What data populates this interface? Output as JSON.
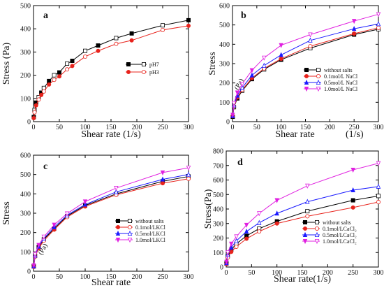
{
  "chart_data": [
    {
      "panel": "a",
      "type": "line",
      "xlabel": "Shear rate (1/s)",
      "ylabel": "Stress (Pa)",
      "xlim": [
        0,
        300
      ],
      "ylim": [
        0,
        500
      ],
      "xticks": [
        0,
        50,
        100,
        150,
        200,
        250,
        300
      ],
      "yticks": [
        0,
        100,
        200,
        300,
        400,
        500
      ],
      "legend_position": "right",
      "series": [
        {
          "name": "pH7",
          "color": "#000000",
          "marker": "square",
          "values": [
            [
              0.5,
              20
            ],
            [
              2,
              50
            ],
            [
              5,
              82
            ],
            [
              10,
              105
            ],
            [
              15,
              125
            ],
            [
              20,
              145
            ],
            [
              30,
              175
            ],
            [
              40,
              200
            ],
            [
              50,
              212
            ],
            [
              65,
              250
            ],
            [
              75,
              262
            ],
            [
              100,
              305
            ],
            [
              125,
              328
            ],
            [
              160,
              360
            ],
            [
              190,
              380
            ],
            [
              250,
              415
            ],
            [
              300,
              437
            ]
          ]
        },
        {
          "name": "pH3",
          "color": "#e8231c",
          "marker": "circle",
          "values": [
            [
              0.5,
              15
            ],
            [
              2,
              40
            ],
            [
              5,
              70
            ],
            [
              10,
              95
            ],
            [
              15,
              115
            ],
            [
              20,
              130
            ],
            [
              30,
              160
            ],
            [
              40,
              180
            ],
            [
              50,
              195
            ],
            [
              65,
              225
            ],
            [
              75,
              240
            ],
            [
              100,
              280
            ],
            [
              125,
              305
            ],
            [
              160,
              335
            ],
            [
              190,
              350
            ],
            [
              250,
              395
            ],
            [
              300,
              413
            ]
          ]
        }
      ]
    },
    {
      "panel": "b",
      "type": "line",
      "xlabel": "Shear rate",
      "xunit": "(1/s)",
      "ylabel": "Stress",
      "yunit": "(Pa)",
      "xlim": [
        0,
        300
      ],
      "ylim": [
        0,
        600
      ],
      "xticks": [
        0,
        50,
        100,
        150,
        200,
        250,
        300
      ],
      "yticks": [
        0,
        100,
        200,
        300,
        400,
        500,
        600
      ],
      "legend_position": "bottom-right",
      "series": [
        {
          "name": "without salts",
          "color": "#000000",
          "marker": "square",
          "values": [
            [
              0.5,
              25
            ],
            [
              3,
              75
            ],
            [
              10,
              120
            ],
            [
              20,
              160
            ],
            [
              40,
              220
            ],
            [
              65,
              270
            ],
            [
              100,
              320
            ],
            [
              160,
              380
            ],
            [
              250,
              450
            ],
            [
              300,
              478
            ]
          ]
        },
        {
          "name": "0.1mol/L NaCl",
          "color": "#e8231c",
          "marker": "circle",
          "values": [
            [
              0.5,
              28
            ],
            [
              3,
              78
            ],
            [
              10,
              125
            ],
            [
              20,
              165
            ],
            [
              40,
              225
            ],
            [
              65,
              275
            ],
            [
              100,
              325
            ],
            [
              160,
              390
            ],
            [
              250,
              455
            ],
            [
              300,
              485
            ]
          ]
        },
        {
          "name": "0.5mol/L NaCl",
          "color": "#1a1aff",
          "marker": "triangle-up",
          "values": [
            [
              0.5,
              30
            ],
            [
              3,
              85
            ],
            [
              10,
              135
            ],
            [
              20,
              175
            ],
            [
              40,
              240
            ],
            [
              65,
              290
            ],
            [
              100,
              345
            ],
            [
              160,
              420
            ],
            [
              250,
              480
            ],
            [
              300,
              505
            ]
          ]
        },
        {
          "name": "1.0mol/L NaCl",
          "color": "#e020e0",
          "marker": "triangle-down",
          "values": [
            [
              0.5,
              35
            ],
            [
              3,
              95
            ],
            [
              10,
              150
            ],
            [
              20,
              195
            ],
            [
              40,
              265
            ],
            [
              65,
              330
            ],
            [
              100,
              395
            ],
            [
              160,
              450
            ],
            [
              250,
              520
            ],
            [
              300,
              555
            ]
          ]
        }
      ]
    },
    {
      "panel": "c",
      "type": "line",
      "xlabel": "Shear rate",
      "ylabel": "Stress",
      "yunit": "(Pa)",
      "xlim": [
        0,
        300
      ],
      "ylim": [
        0,
        600
      ],
      "xticks": [
        0,
        50,
        100,
        150,
        200,
        250,
        300
      ],
      "yticks": [
        0,
        100,
        200,
        300,
        400,
        500,
        600
      ],
      "legend_position": "bottom-right",
      "series": [
        {
          "name": "without salts",
          "color": "#000000",
          "marker": "square",
          "values": [
            [
              0.5,
              25
            ],
            [
              3,
              80
            ],
            [
              10,
              125
            ],
            [
              20,
              165
            ],
            [
              40,
              220
            ],
            [
              65,
              285
            ],
            [
              100,
              340
            ],
            [
              160,
              400
            ],
            [
              250,
              465
            ],
            [
              300,
              490
            ]
          ]
        },
        {
          "name": "0.1mol/LKCl",
          "color": "#e8231c",
          "marker": "circle",
          "values": [
            [
              0.5,
              22
            ],
            [
              3,
              75
            ],
            [
              10,
              118
            ],
            [
              20,
              158
            ],
            [
              40,
              215
            ],
            [
              65,
              280
            ],
            [
              100,
              335
            ],
            [
              160,
              395
            ],
            [
              250,
              455
            ],
            [
              300,
              478
            ]
          ]
        },
        {
          "name": "0.5mol/LKCl",
          "color": "#1a1aff",
          "marker": "triangle-up",
          "values": [
            [
              0.5,
              26
            ],
            [
              3,
              82
            ],
            [
              10,
              128
            ],
            [
              20,
              170
            ],
            [
              40,
              228
            ],
            [
              65,
              290
            ],
            [
              100,
              345
            ],
            [
              160,
              410
            ],
            [
              250,
              475
            ],
            [
              300,
              500
            ]
          ]
        },
        {
          "name": "1.0mol/LKCl",
          "color": "#e020e0",
          "marker": "triangle-down",
          "values": [
            [
              0.5,
              30
            ],
            [
              3,
              88
            ],
            [
              10,
              135
            ],
            [
              20,
              178
            ],
            [
              40,
              240
            ],
            [
              65,
              298
            ],
            [
              100,
              360
            ],
            [
              160,
              430
            ],
            [
              250,
              510
            ],
            [
              300,
              535
            ]
          ]
        }
      ]
    },
    {
      "panel": "d",
      "type": "line",
      "xlabel": "Shear rate(1/s)",
      "ylabel": "Stress(Pa)",
      "xlim": [
        0,
        300
      ],
      "ylim": [
        0,
        800
      ],
      "xticks": [
        0,
        50,
        100,
        150,
        200,
        250,
        300
      ],
      "yticks": [
        0,
        100,
        200,
        300,
        400,
        500,
        600,
        700,
        800
      ],
      "legend_position": "bottom-right",
      "series": [
        {
          "name": "without salts",
          "color": "#000000",
          "marker": "square",
          "values": [
            [
              0.5,
              25
            ],
            [
              3,
              75
            ],
            [
              10,
              120
            ],
            [
              20,
              160
            ],
            [
              40,
              215
            ],
            [
              65,
              265
            ],
            [
              100,
              315
            ],
            [
              160,
              385
            ],
            [
              250,
              460
            ],
            [
              300,
              490
            ]
          ]
        },
        {
          "name": "0.1mol/LCaCl₂",
          "color": "#e8231c",
          "marker": "circle",
          "values": [
            [
              0.5,
              20
            ],
            [
              3,
              65
            ],
            [
              10,
              105
            ],
            [
              20,
              140
            ],
            [
              40,
              195
            ],
            [
              65,
              245
            ],
            [
              100,
              300
            ],
            [
              160,
              350
            ],
            [
              250,
              410
            ],
            [
              300,
              448
            ]
          ]
        },
        {
          "name": "0.5mol/LCaCl₂",
          "color": "#1a1aff",
          "marker": "triangle-up",
          "values": [
            [
              0.5,
              28
            ],
            [
              3,
              85
            ],
            [
              10,
              135
            ],
            [
              20,
              180
            ],
            [
              40,
              245
            ],
            [
              65,
              305
            ],
            [
              100,
              370
            ],
            [
              160,
              450
            ],
            [
              250,
              530
            ],
            [
              300,
              555
            ]
          ]
        },
        {
          "name": "1.0mol/LCaCl₂",
          "color": "#e020e0",
          "marker": "triangle-down",
          "values": [
            [
              0.5,
              35
            ],
            [
              3,
              100
            ],
            [
              10,
              160
            ],
            [
              20,
              210
            ],
            [
              40,
              290
            ],
            [
              65,
              370
            ],
            [
              100,
              460
            ],
            [
              160,
              560
            ],
            [
              250,
              670
            ],
            [
              300,
              715
            ]
          ]
        }
      ]
    }
  ]
}
